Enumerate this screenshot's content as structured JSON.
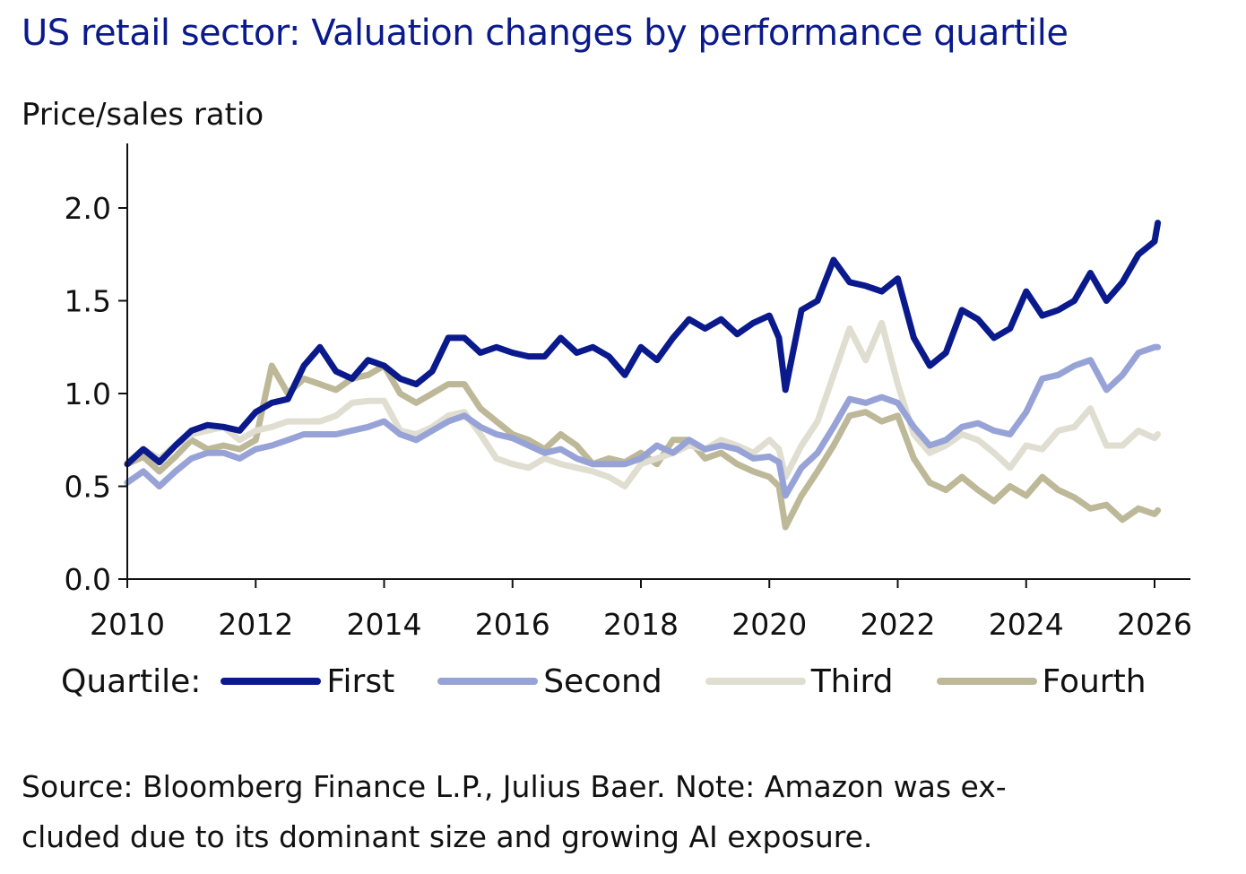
{
  "title": "US retail sector: Valuation changes by performance quartile",
  "source_note_line1": "Source: Bloomberg Finance L.P., Julius Baer. Note: Amazon was ex-",
  "source_note_line2": "cluded due to its dominant size and growing AI exposure.",
  "legend": {
    "title": "Quartile:",
    "items": [
      {
        "label": "First",
        "color": "#0a1a8c"
      },
      {
        "label": "Second",
        "color": "#97a3d6"
      },
      {
        "label": "Third",
        "color": "#e0ded0"
      },
      {
        "label": "Fourth",
        "color": "#bdb898"
      }
    ]
  },
  "chart_data": {
    "type": "line",
    "title": "US retail sector: Valuation changes by performance quartile",
    "xlabel": "",
    "ylabel": "Price/sales ratio",
    "xlim": [
      2010,
      2026.6
    ],
    "ylim": [
      0,
      2.3
    ],
    "x_ticks": [
      2010,
      2012,
      2014,
      2016,
      2018,
      2020,
      2022,
      2024,
      2026
    ],
    "x_tick_labels": [
      "2010",
      "2012",
      "2014",
      "2016",
      "2018",
      "2020",
      "2022",
      "2024",
      "2026"
    ],
    "y_ticks": [
      0.0,
      0.5,
      1.0,
      1.5,
      2.0
    ],
    "y_tick_labels": [
      "0.0",
      "0.5",
      "1.0",
      "1.5",
      "2.0"
    ],
    "grid": false,
    "legend_position": "bottom",
    "x": [
      2010.0,
      2010.25,
      2010.5,
      2010.75,
      2011.0,
      2011.25,
      2011.5,
      2011.75,
      2012.0,
      2012.25,
      2012.5,
      2012.75,
      2013.0,
      2013.25,
      2013.5,
      2013.75,
      2014.0,
      2014.25,
      2014.5,
      2014.75,
      2015.0,
      2015.25,
      2015.5,
      2015.75,
      2016.0,
      2016.25,
      2016.5,
      2016.75,
      2017.0,
      2017.25,
      2017.5,
      2017.75,
      2018.0,
      2018.25,
      2018.5,
      2018.75,
      2019.0,
      2019.25,
      2019.5,
      2019.75,
      2020.0,
      2020.15,
      2020.25,
      2020.5,
      2020.75,
      2021.0,
      2021.25,
      2021.5,
      2021.75,
      2022.0,
      2022.25,
      2022.5,
      2022.75,
      2023.0,
      2023.25,
      2023.5,
      2023.75,
      2024.0,
      2024.25,
      2024.5,
      2024.75,
      2025.0,
      2025.25,
      2025.5,
      2025.75,
      2026.0,
      2026.05
    ],
    "series": [
      {
        "name": "First",
        "color": "#0a1a8c",
        "values": [
          0.62,
          0.7,
          0.63,
          0.72,
          0.8,
          0.83,
          0.82,
          0.8,
          0.9,
          0.95,
          0.97,
          1.15,
          1.25,
          1.12,
          1.08,
          1.18,
          1.15,
          1.08,
          1.05,
          1.12,
          1.3,
          1.3,
          1.22,
          1.25,
          1.22,
          1.2,
          1.2,
          1.3,
          1.22,
          1.25,
          1.2,
          1.1,
          1.25,
          1.18,
          1.3,
          1.4,
          1.35,
          1.4,
          1.32,
          1.38,
          1.42,
          1.3,
          1.02,
          1.45,
          1.5,
          1.72,
          1.6,
          1.58,
          1.55,
          1.62,
          1.3,
          1.15,
          1.22,
          1.45,
          1.4,
          1.3,
          1.35,
          1.55,
          1.42,
          1.45,
          1.5,
          1.65,
          1.5,
          1.6,
          1.75,
          1.82,
          1.92
        ]
      },
      {
        "name": "Second",
        "color": "#97a3d6",
        "values": [
          0.52,
          0.58,
          0.5,
          0.58,
          0.65,
          0.68,
          0.68,
          0.65,
          0.7,
          0.72,
          0.75,
          0.78,
          0.78,
          0.78,
          0.8,
          0.82,
          0.85,
          0.78,
          0.75,
          0.8,
          0.85,
          0.88,
          0.82,
          0.78,
          0.76,
          0.72,
          0.68,
          0.7,
          0.65,
          0.62,
          0.62,
          0.62,
          0.65,
          0.72,
          0.68,
          0.75,
          0.7,
          0.72,
          0.7,
          0.65,
          0.66,
          0.63,
          0.45,
          0.6,
          0.68,
          0.82,
          0.97,
          0.95,
          0.98,
          0.95,
          0.82,
          0.72,
          0.75,
          0.82,
          0.84,
          0.8,
          0.78,
          0.9,
          1.08,
          1.1,
          1.15,
          1.18,
          1.02,
          1.1,
          1.22,
          1.25,
          1.25
        ]
      },
      {
        "name": "Third",
        "color": "#e0ded0",
        "values": [
          0.63,
          0.7,
          0.65,
          0.72,
          0.78,
          0.8,
          0.82,
          0.75,
          0.8,
          0.82,
          0.85,
          0.85,
          0.85,
          0.88,
          0.95,
          0.96,
          0.96,
          0.8,
          0.78,
          0.82,
          0.88,
          0.9,
          0.78,
          0.65,
          0.62,
          0.6,
          0.65,
          0.62,
          0.6,
          0.58,
          0.55,
          0.5,
          0.62,
          0.65,
          0.68,
          0.72,
          0.7,
          0.75,
          0.72,
          0.68,
          0.75,
          0.7,
          0.55,
          0.72,
          0.85,
          1.1,
          1.35,
          1.18,
          1.38,
          1.05,
          0.78,
          0.68,
          0.72,
          0.78,
          0.75,
          0.68,
          0.6,
          0.72,
          0.7,
          0.8,
          0.82,
          0.92,
          0.72,
          0.72,
          0.8,
          0.76,
          0.78
        ]
      },
      {
        "name": "Fourth",
        "color": "#bdb898",
        "values": [
          0.62,
          0.66,
          0.58,
          0.66,
          0.75,
          0.7,
          0.72,
          0.7,
          0.75,
          1.15,
          1.0,
          1.08,
          1.05,
          1.02,
          1.08,
          1.1,
          1.15,
          1.0,
          0.95,
          1.0,
          1.05,
          1.05,
          0.92,
          0.85,
          0.78,
          0.75,
          0.7,
          0.78,
          0.72,
          0.62,
          0.65,
          0.63,
          0.68,
          0.62,
          0.75,
          0.75,
          0.65,
          0.68,
          0.62,
          0.58,
          0.55,
          0.5,
          0.28,
          0.45,
          0.58,
          0.72,
          0.88,
          0.9,
          0.85,
          0.88,
          0.65,
          0.52,
          0.48,
          0.55,
          0.48,
          0.42,
          0.5,
          0.45,
          0.55,
          0.48,
          0.44,
          0.38,
          0.4,
          0.32,
          0.38,
          0.35,
          0.37
        ]
      }
    ]
  }
}
